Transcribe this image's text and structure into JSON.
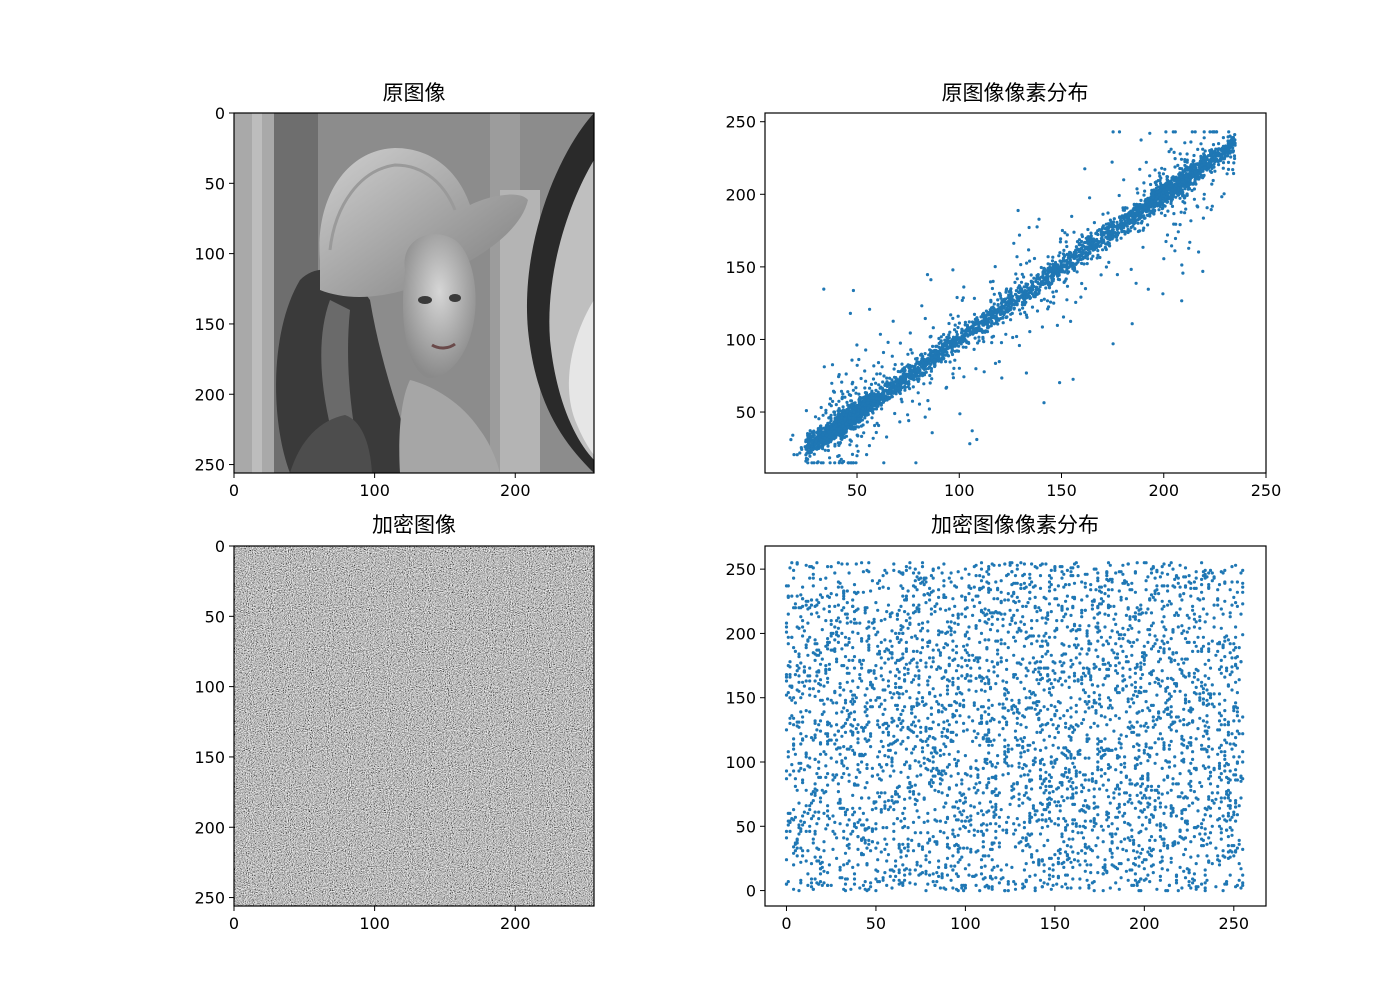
{
  "figure": {
    "background": "#ffffff",
    "point_color": "#1f77b4"
  },
  "chart_data": [
    {
      "id": "original-image",
      "type": "image",
      "title": "原图像",
      "description_kind": "grayscale portrait photograph",
      "xlim": [
        0,
        256
      ],
      "ylim": [
        256,
        0
      ],
      "xticks": [
        0,
        100,
        200
      ],
      "yticks": [
        0,
        50,
        100,
        150,
        200,
        250
      ],
      "xtick_labels": [
        "0",
        "100",
        "200"
      ],
      "ytick_labels": [
        "0",
        "50",
        "100",
        "150",
        "200",
        "250"
      ]
    },
    {
      "id": "original-scatter",
      "type": "scatter",
      "title": "原图像像素分布",
      "xlim": [
        5,
        250
      ],
      "ylim": [
        8,
        256
      ],
      "xticks": [
        50,
        100,
        150,
        200,
        250
      ],
      "yticks": [
        50,
        100,
        150,
        200,
        250
      ],
      "xtick_labels": [
        "50",
        "100",
        "150",
        "200",
        "250"
      ],
      "ytick_labels": [
        "50",
        "100",
        "150",
        "200",
        "250"
      ],
      "distribution": "strongly correlated along the diagonal (y ≈ x), denser cluster near (45, 45), scattered outliers",
      "x_range": [
        14,
        240
      ],
      "y_range": [
        15,
        243
      ],
      "color": "#1f77b4",
      "n_points_approx": 4000
    },
    {
      "id": "encrypted-image",
      "type": "image",
      "title": "加密图像",
      "description_kind": "random grayscale noise",
      "xlim": [
        0,
        256
      ],
      "ylim": [
        256,
        0
      ],
      "xticks": [
        0,
        100,
        200
      ],
      "yticks": [
        0,
        50,
        100,
        150,
        200,
        250
      ],
      "xtick_labels": [
        "0",
        "100",
        "200"
      ],
      "ytick_labels": [
        "0",
        "50",
        "100",
        "150",
        "200",
        "250"
      ]
    },
    {
      "id": "encrypted-scatter",
      "type": "scatter",
      "title": "加密图像像素分布",
      "xlim": [
        -12,
        268
      ],
      "ylim": [
        -12,
        268
      ],
      "xticks": [
        0,
        50,
        100,
        150,
        200,
        250
      ],
      "yticks": [
        0,
        50,
        100,
        150,
        200,
        250
      ],
      "xtick_labels": [
        "0",
        "50",
        "100",
        "150",
        "200",
        "250"
      ],
      "ytick_labels": [
        "0",
        "50",
        "100",
        "150",
        "200",
        "250"
      ],
      "distribution": "uniform random over [0,255] x [0,255]",
      "x_range": [
        0,
        255
      ],
      "y_range": [
        0,
        255
      ],
      "color": "#1f77b4",
      "n_points_approx": 4000
    }
  ]
}
